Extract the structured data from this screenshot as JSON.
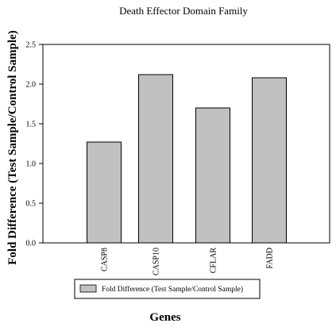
{
  "chart_data": {
    "type": "bar",
    "title": "Death Effector Domain Family",
    "xlabel": "Genes",
    "ylabel": "Fold Difference (Test Sample/Control Sample)",
    "categories": [
      "CASP8",
      "CASP10",
      "CFLAR",
      "FADD"
    ],
    "series": [
      {
        "name": "Fold Difference (Test Sample/Control Sample)",
        "values": [
          1.27,
          2.12,
          1.7,
          2.08
        ]
      }
    ],
    "ylim": [
      0,
      2.5
    ],
    "yticks": [
      "0.0",
      "0.5",
      "1.0",
      "1.5",
      "2.0",
      "2.5"
    ],
    "grid": false,
    "legend_position": "bottom",
    "bar_color": "#c0c0c0"
  }
}
